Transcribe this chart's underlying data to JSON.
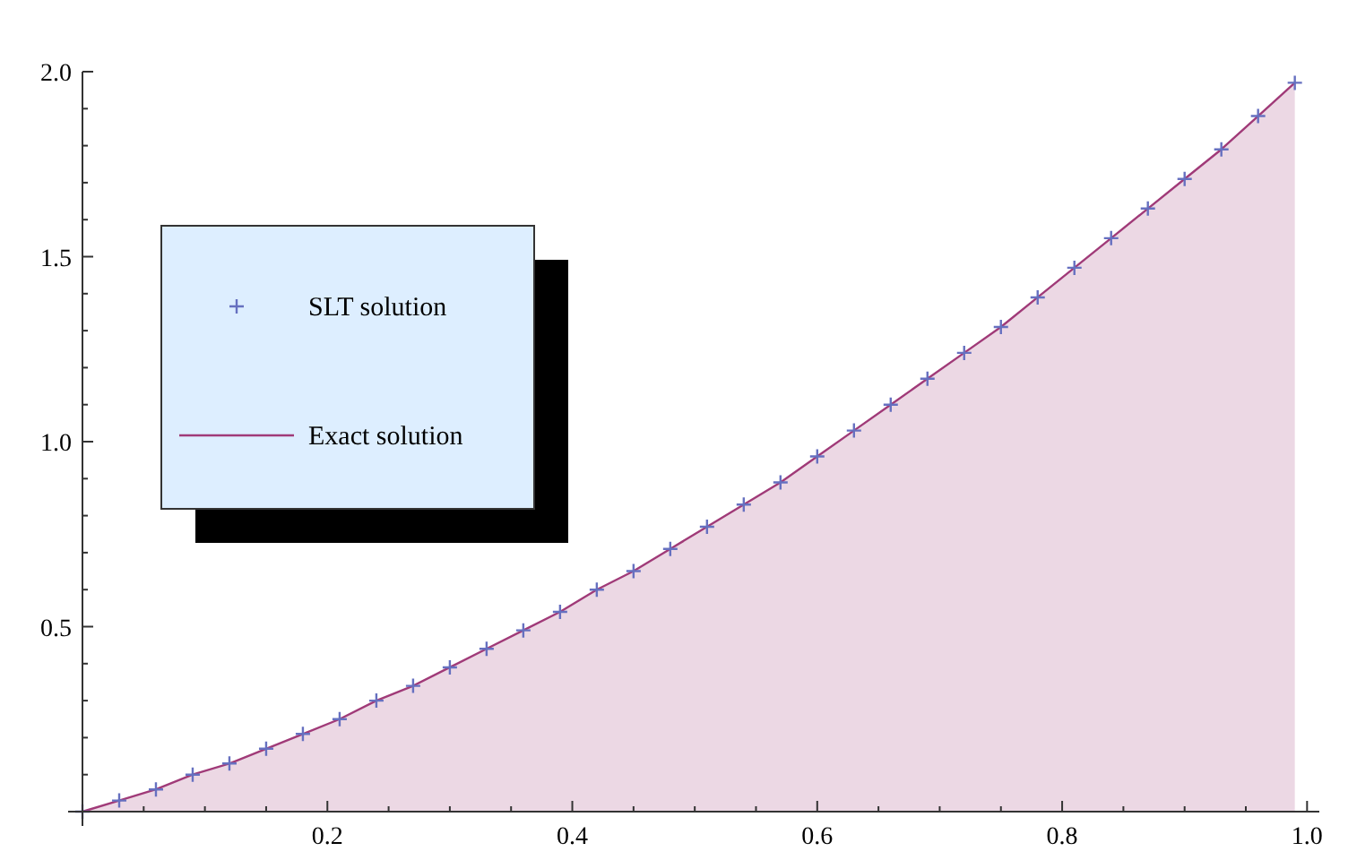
{
  "chart_data": {
    "type": "area",
    "x": [
      0,
      0.03,
      0.06,
      0.09,
      0.12,
      0.15,
      0.18,
      0.21,
      0.24,
      0.27,
      0.3,
      0.33,
      0.36,
      0.39,
      0.42,
      0.45,
      0.48,
      0.51,
      0.54,
      0.57,
      0.6,
      0.63,
      0.66,
      0.69,
      0.72,
      0.75,
      0.78,
      0.81,
      0.84,
      0.87,
      0.9,
      0.93,
      0.96,
      0.99
    ],
    "series": [
      {
        "name": "SLT solution",
        "type": "scatter",
        "marker": "cross",
        "color": "#6670c0",
        "values": [
          0,
          0.03,
          0.06,
          0.1,
          0.13,
          0.17,
          0.21,
          0.25,
          0.3,
          0.34,
          0.39,
          0.44,
          0.49,
          0.54,
          0.6,
          0.65,
          0.71,
          0.77,
          0.83,
          0.89,
          0.96,
          1.03,
          1.1,
          1.17,
          1.24,
          1.31,
          1.39,
          1.47,
          1.55,
          1.63,
          1.71,
          1.79,
          1.88,
          1.97
        ]
      },
      {
        "name": "Exact solution",
        "color": "#a03a78",
        "values": [
          0,
          0.03,
          0.06,
          0.1,
          0.13,
          0.17,
          0.21,
          0.25,
          0.3,
          0.34,
          0.39,
          0.44,
          0.49,
          0.54,
          0.6,
          0.65,
          0.71,
          0.77,
          0.83,
          0.89,
          0.96,
          1.03,
          1.1,
          1.17,
          1.24,
          1.31,
          1.39,
          1.47,
          1.55,
          1.63,
          1.71,
          1.79,
          1.88,
          1.97
        ]
      }
    ],
    "xlim": [
      0,
      1.01
    ],
    "ylim": [
      0,
      2.0
    ],
    "xticks": [
      {
        "value": 0.05,
        "label": null
      },
      {
        "value": 0.1,
        "label": null
      },
      {
        "value": 0.15,
        "label": null
      },
      0.2,
      {
        "value": 0.25,
        "label": null
      },
      {
        "value": 0.3,
        "label": null
      },
      {
        "value": 0.35,
        "label": null
      },
      0.4,
      {
        "value": 0.45,
        "label": null
      },
      {
        "value": 0.5,
        "label": null
      },
      {
        "value": 0.55,
        "label": null
      },
      0.6,
      {
        "value": 0.65,
        "label": null
      },
      {
        "value": 0.7,
        "label": null
      },
      {
        "value": 0.75,
        "label": null
      },
      0.8,
      {
        "value": 0.85,
        "label": null
      },
      {
        "value": 0.9,
        "label": null
      },
      {
        "value": 0.95,
        "label": null
      },
      {
        "value": 1,
        "label": "1.0"
      }
    ],
    "yticks": [
      {
        "value": 0.1,
        "label": null
      },
      {
        "value": 0.2,
        "label": null
      },
      {
        "value": 0.3,
        "label": null
      },
      {
        "value": 0.4,
        "label": null
      },
      0.5,
      {
        "value": 0.6,
        "label": null
      },
      {
        "value": 0.7,
        "label": null
      },
      {
        "value": 0.8,
        "label": null
      },
      {
        "value": 0.9,
        "label": null
      },
      {
        "value": 1,
        "label": "1.0"
      },
      {
        "value": 1.1,
        "label": null
      },
      {
        "value": 1.2,
        "label": null
      },
      {
        "value": 1.3,
        "label": null
      },
      {
        "value": 1.4,
        "label": null
      },
      {
        "value": 1.5,
        "label": "1.5"
      },
      {
        "value": 1.6,
        "label": null
      },
      {
        "value": 1.7,
        "label": null
      },
      {
        "value": 1.8,
        "label": null
      },
      {
        "value": 1.9,
        "label": null
      },
      {
        "value": 2,
        "label": "2.0"
      }
    ],
    "grid": false,
    "legend": "left"
  }
}
